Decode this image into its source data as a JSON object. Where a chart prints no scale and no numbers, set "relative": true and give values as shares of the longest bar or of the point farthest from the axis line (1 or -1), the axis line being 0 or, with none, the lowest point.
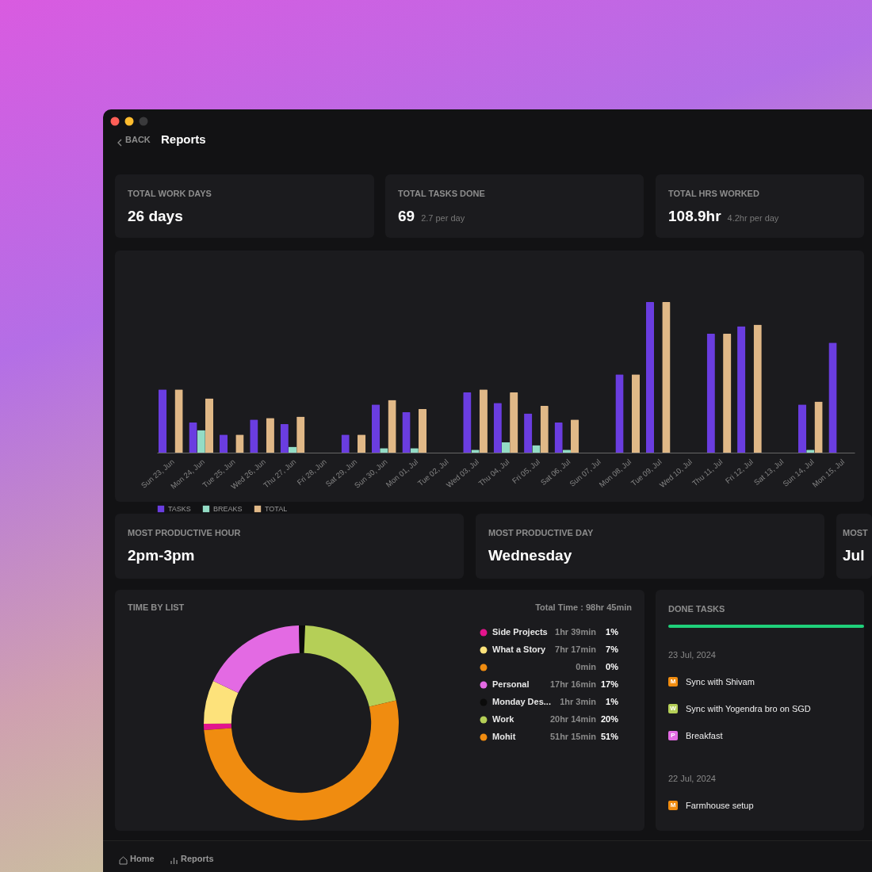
{
  "chart_data": [
    {
      "type": "other",
      "title": "Reports",
      "annotations": [
        "BACK",
        "TOTAL WORK DAYS",
        "26 days",
        "TOTAL TASKS DONE",
        "69",
        "2.7 per day",
        "TOTAL HRS WORKED",
        "108.9hr",
        "4.2hr per day"
      ]
    },
    {
      "type": "bar",
      "relative": true,
      "legend": "bottom",
      "categories": [
        "Sun 23, Jun",
        "Mon 24, Jun",
        "Tue 25, Jun",
        "Wed 26, Jun",
        "Thu 27, Jun",
        "Fri 28, Jun",
        "Sat 29, Jun",
        "Sun 30, Jun",
        "Mon 01, Jul",
        "Tue 02, Jul",
        "Wed 03, Jul",
        "Thu 04, Jul",
        "Fri 05, Jul",
        "Sat 06, Jul",
        "Sun 07, Jul",
        "Mon 08, Jul",
        "Tue 09, Jul",
        "Wed 10, Jul",
        "Thu 11, Jul",
        "Fri 12, Jul",
        "Sat 13, Jul",
        "Sun 14, Jul",
        "Mon 15, Jul"
      ],
      "series": [
        {
          "name": "TASKS",
          "color": "#6a3de0",
          "values": [
            0.42,
            0.2,
            0.12,
            0.22,
            0.19,
            0,
            0.12,
            0.32,
            0.27,
            0,
            0.4,
            0.33,
            0.26,
            0.2,
            0,
            0.52,
            1,
            0,
            0.79,
            0.84,
            0,
            0.32,
            0.73
          ]
        },
        {
          "name": "BREAKS",
          "color": "#93dcc5",
          "values": [
            0,
            0.15,
            0,
            0,
            0.04,
            0,
            0,
            0.03,
            0.03,
            0,
            0.02,
            0.07,
            0.05,
            0.02,
            0,
            0,
            0,
            0,
            0,
            0,
            0,
            0.02,
            null
          ]
        },
        {
          "name": "TOTAL",
          "color": "#e0b887",
          "values": [
            0.42,
            0.36,
            0.12,
            0.23,
            0.24,
            0,
            0.12,
            0.35,
            0.29,
            0,
            0.42,
            0.4,
            0.31,
            0.22,
            0,
            0.52,
            1,
            0,
            0.79,
            0.85,
            0,
            0.34,
            null
          ]
        }
      ]
    },
    {
      "type": "other",
      "annotations": [
        "MOST PRODUCTIVE HOUR",
        "2pm-3pm",
        "MOST PRODUCTIVE DAY",
        "Wednesday",
        "MOST",
        "Jul"
      ]
    },
    {
      "type": "donut",
      "title": "TIME BY LIST",
      "legend": "right",
      "annotations": [
        "Total Time : 98hr 45min",
        "1hr 39min",
        "7hr 17min",
        "0min",
        "17hr 16min",
        "1hr 3min",
        "20hr 14min",
        "51hr 15min"
      ],
      "categories": [
        "Side Projects",
        "What a Story",
        null,
        "Personal",
        "Monday Des...",
        "Work",
        "Mohit"
      ],
      "values": [
        1,
        7,
        0,
        17,
        1,
        20,
        51
      ],
      "value_labels": [
        "1%",
        "7%",
        "0%",
        "17%",
        "1%",
        "20%",
        "51%"
      ],
      "colors": [
        "#e3148d",
        "#fde27b",
        "#f08c10",
        "#e36ae3",
        "#0b0b0b",
        "#b5cf57",
        "#f08c10"
      ]
    },
    {
      "type": "other",
      "title": "DONE TASKS",
      "annotations": [
        "23 Jul, 2024",
        "M",
        "Sync with Shivam",
        "W",
        "Sync with Yogendra bro on SGD",
        "P",
        "Breakfast",
        "22 Jul, 2024",
        "M",
        "Farmhouse setup",
        "Home",
        "Reports"
      ]
    }
  ]
}
